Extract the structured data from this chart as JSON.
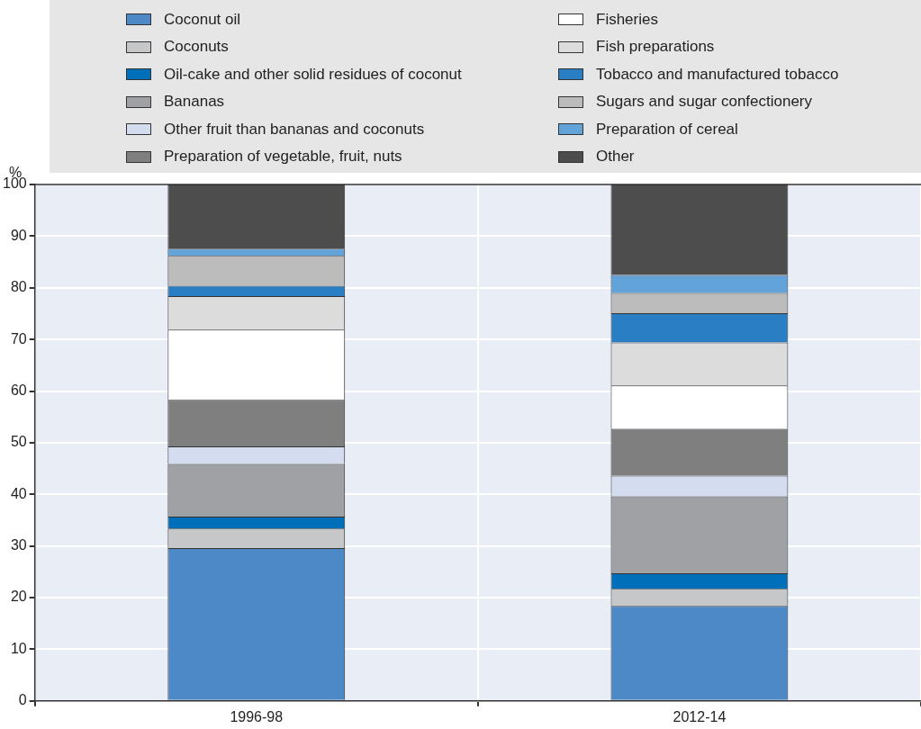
{
  "chart_data": {
    "type": "bar",
    "ylabel": "%",
    "categories": [
      "1996-98",
      "2012-14"
    ],
    "stacked": true,
    "ylim": [
      0,
      100
    ],
    "yticks": [
      0,
      10,
      20,
      30,
      40,
      50,
      60,
      70,
      80,
      90,
      100
    ],
    "grid": true,
    "legend": "top",
    "series": [
      {
        "name": "Coconut oil",
        "color": "#4d88c7",
        "values": [
          29.6,
          18.4
        ]
      },
      {
        "name": "Coconuts",
        "color": "#c6c7c9",
        "values": [
          3.8,
          3.3
        ]
      },
      {
        "name": "Oil-cake and other solid residues of coconut",
        "color": "#006fba",
        "values": [
          2.3,
          3.0
        ]
      },
      {
        "name": "Bananas",
        "color": "#a0a1a4",
        "values": [
          10.2,
          14.9
        ]
      },
      {
        "name": "Other fruit than bananas and coconuts",
        "color": "#d4ddef",
        "values": [
          3.4,
          4.0
        ]
      },
      {
        "name": "Preparation of vegetable, fruit, nuts",
        "color": "#7f7f7f",
        "values": [
          9.0,
          9.1
        ]
      },
      {
        "name": "Fisheries",
        "color": "#ffffff",
        "values": [
          13.6,
          8.4
        ]
      },
      {
        "name": "Fish preparations",
        "color": "#dcdcdc",
        "values": [
          6.5,
          8.3
        ]
      },
      {
        "name": "Tobacco and manufactured tobacco",
        "color": "#2a7fc4",
        "values": [
          2.0,
          5.7
        ]
      },
      {
        "name": "Sugars and sugar confectionery",
        "color": "#bcbcbc",
        "values": [
          5.8,
          3.9
        ]
      },
      {
        "name": "Preparation of cereal",
        "color": "#62a3da",
        "values": [
          1.4,
          3.5
        ]
      },
      {
        "name": "Other",
        "color": "#4d4d4d",
        "values": [
          12.4,
          17.5
        ]
      }
    ]
  }
}
